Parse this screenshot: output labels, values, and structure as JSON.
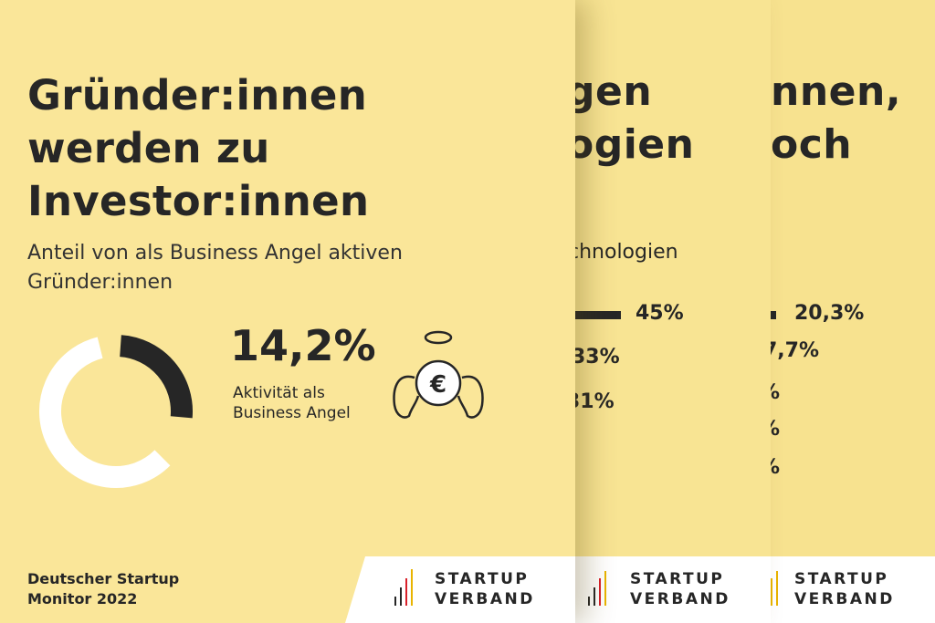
{
  "cards": {
    "back": {
      "title_lines": [
        "nnen,",
        "och"
      ],
      "values": [
        "20,3%",
        "7,7%",
        "%",
        "%",
        "%"
      ]
    },
    "middle": {
      "title_lines": [
        "gen",
        "ogien"
      ],
      "subtitle": "chnologien",
      "values": [
        "45%",
        "33%",
        "31%"
      ]
    },
    "front": {
      "title_lines": [
        "Gründer:innen",
        "werden zu",
        "Investor:innen"
      ],
      "subtitle_lines": [
        "Anteil von als Business Angel aktiven",
        "Gründer:innen"
      ],
      "big_value": "14,2%",
      "value_percent": 14.2,
      "value_label_lines": [
        "Aktivität als",
        "Business Angel"
      ],
      "icon": "angel-euro-icon",
      "footer_lines": [
        "Deutscher Startup",
        "Monitor 2022"
      ]
    }
  },
  "logo": {
    "lines": [
      "STARTUP",
      "VERBAND"
    ],
    "icon": "startup-verband-logo-icon"
  },
  "colors": {
    "background": "#fae699",
    "text": "#262626",
    "logo_bg": "#ffffff",
    "donut_filled": "#262626",
    "donut_rest": "#ffffff"
  }
}
